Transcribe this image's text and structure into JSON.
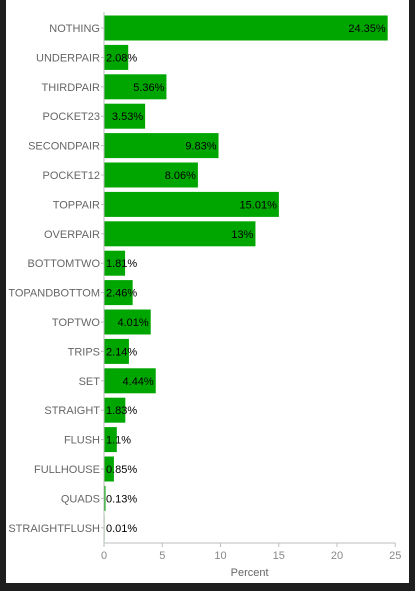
{
  "colors": {
    "bar": "#00a600",
    "axis": "#bdbdbd",
    "background": "#ffffff",
    "frame": "#1e1e1e"
  },
  "chart_data": {
    "type": "bar",
    "orientation": "horizontal",
    "categories": [
      "NOTHING",
      "UNDERPAIR",
      "THIRDPAIR",
      "POCKET23",
      "SECONDPAIR",
      "POCKET12",
      "TOPPAIR",
      "OVERPAIR",
      "BOTTOMTWO",
      "TOPANDBOTTOM",
      "TOPTWO",
      "TRIPS",
      "SET",
      "STRAIGHT",
      "FLUSH",
      "FULLHOUSE",
      "QUADS",
      "STRAIGHTFLUSH"
    ],
    "values": [
      24.35,
      2.08,
      5.36,
      3.53,
      9.83,
      8.06,
      15.01,
      13,
      1.81,
      2.46,
      4.01,
      2.14,
      4.44,
      1.83,
      1.1,
      0.85,
      0.13,
      0.01
    ],
    "value_labels": [
      "24.35%",
      "2.08%",
      "5.36%",
      "3.53%",
      "9.83%",
      "8.06%",
      "15.01%",
      "13%",
      "1.81%",
      "2.46%",
      "4.01%",
      "2.14%",
      "4.44%",
      "1.83%",
      "1.1%",
      "0.85%",
      "0.13%",
      "0.01%"
    ],
    "xlabel": "Percent",
    "xlim": [
      0,
      25
    ],
    "xticks": [
      0,
      5,
      10,
      15,
      20,
      25
    ],
    "grid": false
  }
}
